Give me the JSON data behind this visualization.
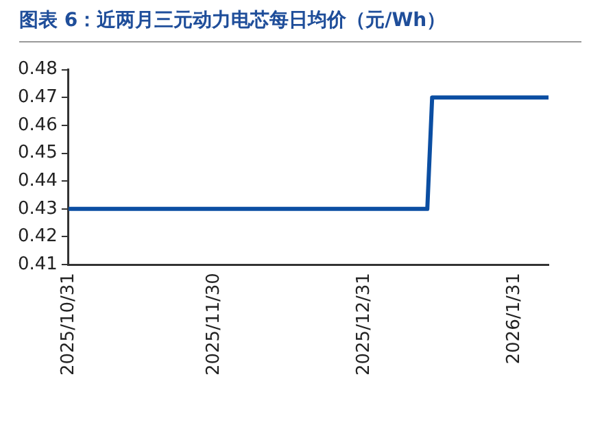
{
  "chart_data": {
    "type": "line",
    "title": "图表 6：近两月三元动力电芯每日均价（元/Wh）",
    "x": [
      "2025-10-31",
      "2026-01-13",
      "2026-01-14",
      "2026-02-07"
    ],
    "series": [
      {
        "color": "#0b4ea2",
        "values": [
          0.43,
          0.43,
          0.47,
          0.47
        ]
      }
    ],
    "xlim": [
      "2025-10-31",
      "2026-02-07"
    ],
    "xticks": [
      {
        "value": "2025-10-31",
        "label": "2025/10/31"
      },
      {
        "value": "2025-11-30",
        "label": "2025/11/30"
      },
      {
        "value": "2025-12-31",
        "label": "2025/12/31"
      },
      {
        "value": "2026-01-31",
        "label": "2026/1/31"
      }
    ],
    "ylim": [
      0.41,
      0.48
    ],
    "yticks": [
      0.41,
      0.42,
      0.43,
      0.44,
      0.45,
      0.46,
      0.47,
      0.48
    ],
    "grid": false,
    "legend": false,
    "marker": "none",
    "line_style": "solid"
  }
}
